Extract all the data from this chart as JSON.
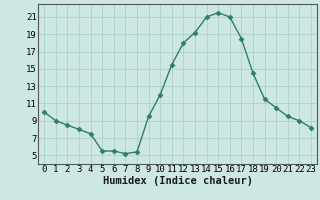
{
  "x": [
    0,
    1,
    2,
    3,
    4,
    5,
    6,
    7,
    8,
    9,
    10,
    11,
    12,
    13,
    14,
    15,
    16,
    17,
    18,
    19,
    20,
    21,
    22,
    23
  ],
  "y": [
    10.0,
    9.0,
    8.5,
    8.0,
    7.5,
    5.5,
    5.5,
    5.2,
    5.4,
    9.5,
    12.0,
    15.5,
    18.0,
    19.2,
    21.0,
    21.5,
    21.0,
    18.5,
    14.5,
    11.5,
    10.5,
    9.5,
    9.0,
    8.2
  ],
  "xlabel": "Humidex (Indice chaleur)",
  "xlim": [
    -0.5,
    23.5
  ],
  "ylim": [
    4.0,
    22.5
  ],
  "yticks": [
    5,
    7,
    9,
    11,
    13,
    15,
    17,
    19,
    21
  ],
  "xticks": [
    0,
    1,
    2,
    3,
    4,
    5,
    6,
    7,
    8,
    9,
    10,
    11,
    12,
    13,
    14,
    15,
    16,
    17,
    18,
    19,
    20,
    21,
    22,
    23
  ],
  "line_color": "#2e7d6e",
  "marker": "D",
  "marker_size": 2.5,
  "bg_color": "#cde8e4",
  "grid_color": "#b0ceca",
  "xlabel_fontsize": 7.5,
  "tick_fontsize": 6.5
}
